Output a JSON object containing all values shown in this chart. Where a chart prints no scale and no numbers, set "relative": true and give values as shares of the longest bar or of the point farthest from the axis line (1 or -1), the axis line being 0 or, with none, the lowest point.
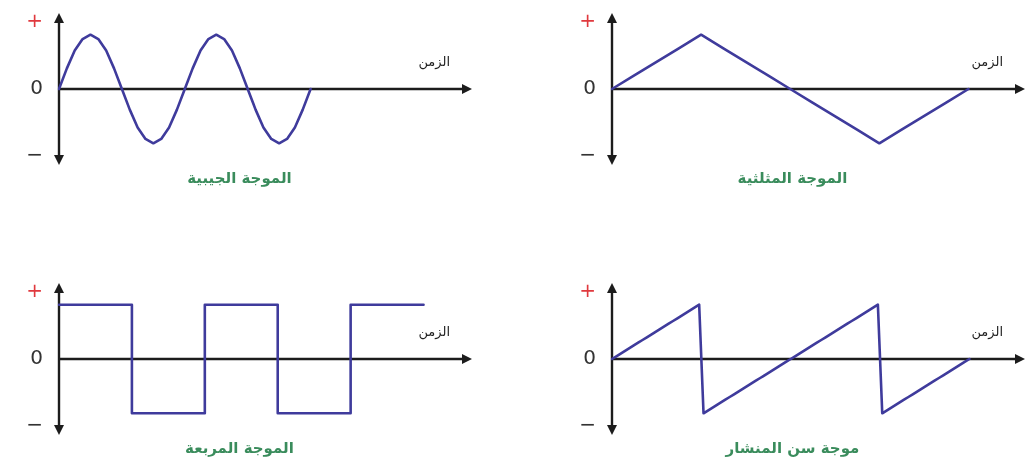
{
  "chart_data": [
    {
      "type": "line",
      "title": "الموجة الجيبية",
      "xlabel": "الزمن",
      "relative": true,
      "color": "#3f3b9c",
      "categories": [
        null,
        null,
        null,
        null,
        null,
        null,
        null,
        null,
        null,
        null,
        null,
        null,
        null,
        null,
        null,
        null,
        null,
        null,
        null,
        null,
        null,
        null,
        null,
        null,
        null,
        null,
        null,
        null,
        null,
        null,
        null,
        null,
        null,
        null,
        null,
        null,
        null,
        null,
        null,
        null,
        null,
        null,
        null,
        null,
        null,
        null,
        null,
        null,
        null,
        null,
        null,
        null
      ],
      "values": [
        0,
        0.38,
        0.71,
        0.92,
        1,
        0.92,
        0.71,
        0.38,
        0,
        -0.38,
        -0.71,
        -0.92,
        -1,
        -0.92,
        -0.71,
        -0.38,
        0,
        0.38,
        0.71,
        0.92,
        1,
        0.92,
        0.71,
        0.38,
        0,
        -0.38,
        -0.71,
        -0.92,
        -1,
        -0.92,
        -0.71,
        -0.38,
        0,
        null,
        null,
        null,
        null,
        null,
        null,
        null,
        null,
        null,
        null,
        null,
        null,
        null,
        null,
        null,
        null,
        null,
        null,
        null
      ],
      "annotations": [
        "+",
        "0",
        "−"
      ]
    },
    {
      "type": "line",
      "title": "الموجة المثلثية",
      "xlabel": "الزمن",
      "relative": true,
      "color": "#3f3b9c",
      "categories": [
        null,
        null,
        null,
        null,
        null,
        null,
        null,
        null,
        null,
        null,
        null,
        null,
        null,
        null,
        null,
        null,
        null,
        null,
        null
      ],
      "values": [
        0,
        0.25,
        0.5,
        0.75,
        1,
        0.75,
        0.5,
        0.25,
        0,
        -0.25,
        -0.5,
        -0.75,
        -1,
        -0.75,
        -0.5,
        -0.25,
        0,
        null,
        null
      ],
      "annotations": [
        "+",
        "0",
        "−"
      ]
    },
    {
      "type": "step",
      "title": "الموجة المربعة",
      "xlabel": "الزمن",
      "relative": true,
      "color": "#3f3b9c",
      "categories": [
        null,
        null,
        null,
        null,
        null,
        null,
        null,
        null,
        null,
        null,
        null,
        null
      ],
      "values": [
        1,
        1,
        -1,
        -1,
        1,
        1,
        -1,
        -1,
        1,
        1,
        1,
        null
      ],
      "annotations": [
        "+",
        "0",
        "−"
      ]
    },
    {
      "type": "line",
      "title": "موجة سن المنشار",
      "xlabel": "الزمن",
      "relative": true,
      "color": "#3f3b9c",
      "categories": [
        null,
        null,
        null,
        null,
        null,
        null,
        null,
        null,
        null,
        null,
        null,
        null,
        null,
        null,
        null,
        null,
        null,
        null,
        null,
        null,
        null,
        null,
        null,
        null,
        null,
        null,
        null,
        null,
        null,
        null,
        null,
        null,
        null,
        null,
        null,
        null,
        null,
        null,
        null,
        null,
        null,
        null,
        null,
        null,
        null,
        null,
        null,
        null,
        null,
        null,
        null,
        null,
        null,
        null,
        null,
        null,
        null,
        null,
        null,
        null,
        null,
        null,
        null,
        null,
        null,
        null,
        null,
        null,
        null,
        null,
        null,
        null,
        null,
        null,
        null,
        null,
        null,
        null,
        null,
        null,
        null,
        null,
        null,
        null,
        null,
        null,
        null,
        null,
        null,
        null,
        null,
        null,
        null
      ],
      "values": [
        0,
        0.05,
        0.1,
        0.15,
        0.2,
        0.25,
        0.3,
        0.35,
        0.4,
        0.45,
        0.5,
        0.55,
        0.6,
        0.65,
        0.7,
        0.75,
        0.8,
        0.85,
        0.9,
        0.95,
        1,
        -1,
        -0.95,
        -0.9,
        -0.85,
        -0.8,
        -0.75,
        -0.7,
        -0.65,
        -0.6,
        -0.55,
        -0.5,
        -0.45,
        -0.4,
        -0.35,
        -0.3,
        -0.25,
        -0.2,
        -0.15,
        -0.1,
        -0.05,
        0,
        0.05,
        0.1,
        0.15,
        0.2,
        0.25,
        0.3,
        0.35,
        0.4,
        0.45,
        0.5,
        0.55,
        0.6,
        0.65,
        0.7,
        0.75,
        0.8,
        0.85,
        0.9,
        0.95,
        1,
        -1,
        -0.95,
        -0.9,
        -0.85,
        -0.8,
        -0.75,
        -0.7,
        -0.65,
        -0.6,
        -0.55,
        -0.5,
        -0.45,
        -0.4,
        -0.35,
        -0.3,
        -0.25,
        -0.2,
        -0.15,
        -0.1,
        -0.05,
        0,
        null,
        null,
        null,
        null,
        null,
        null,
        null,
        null,
        null,
        null
      ],
      "annotations": [
        "+",
        "0",
        "−"
      ]
    }
  ]
}
